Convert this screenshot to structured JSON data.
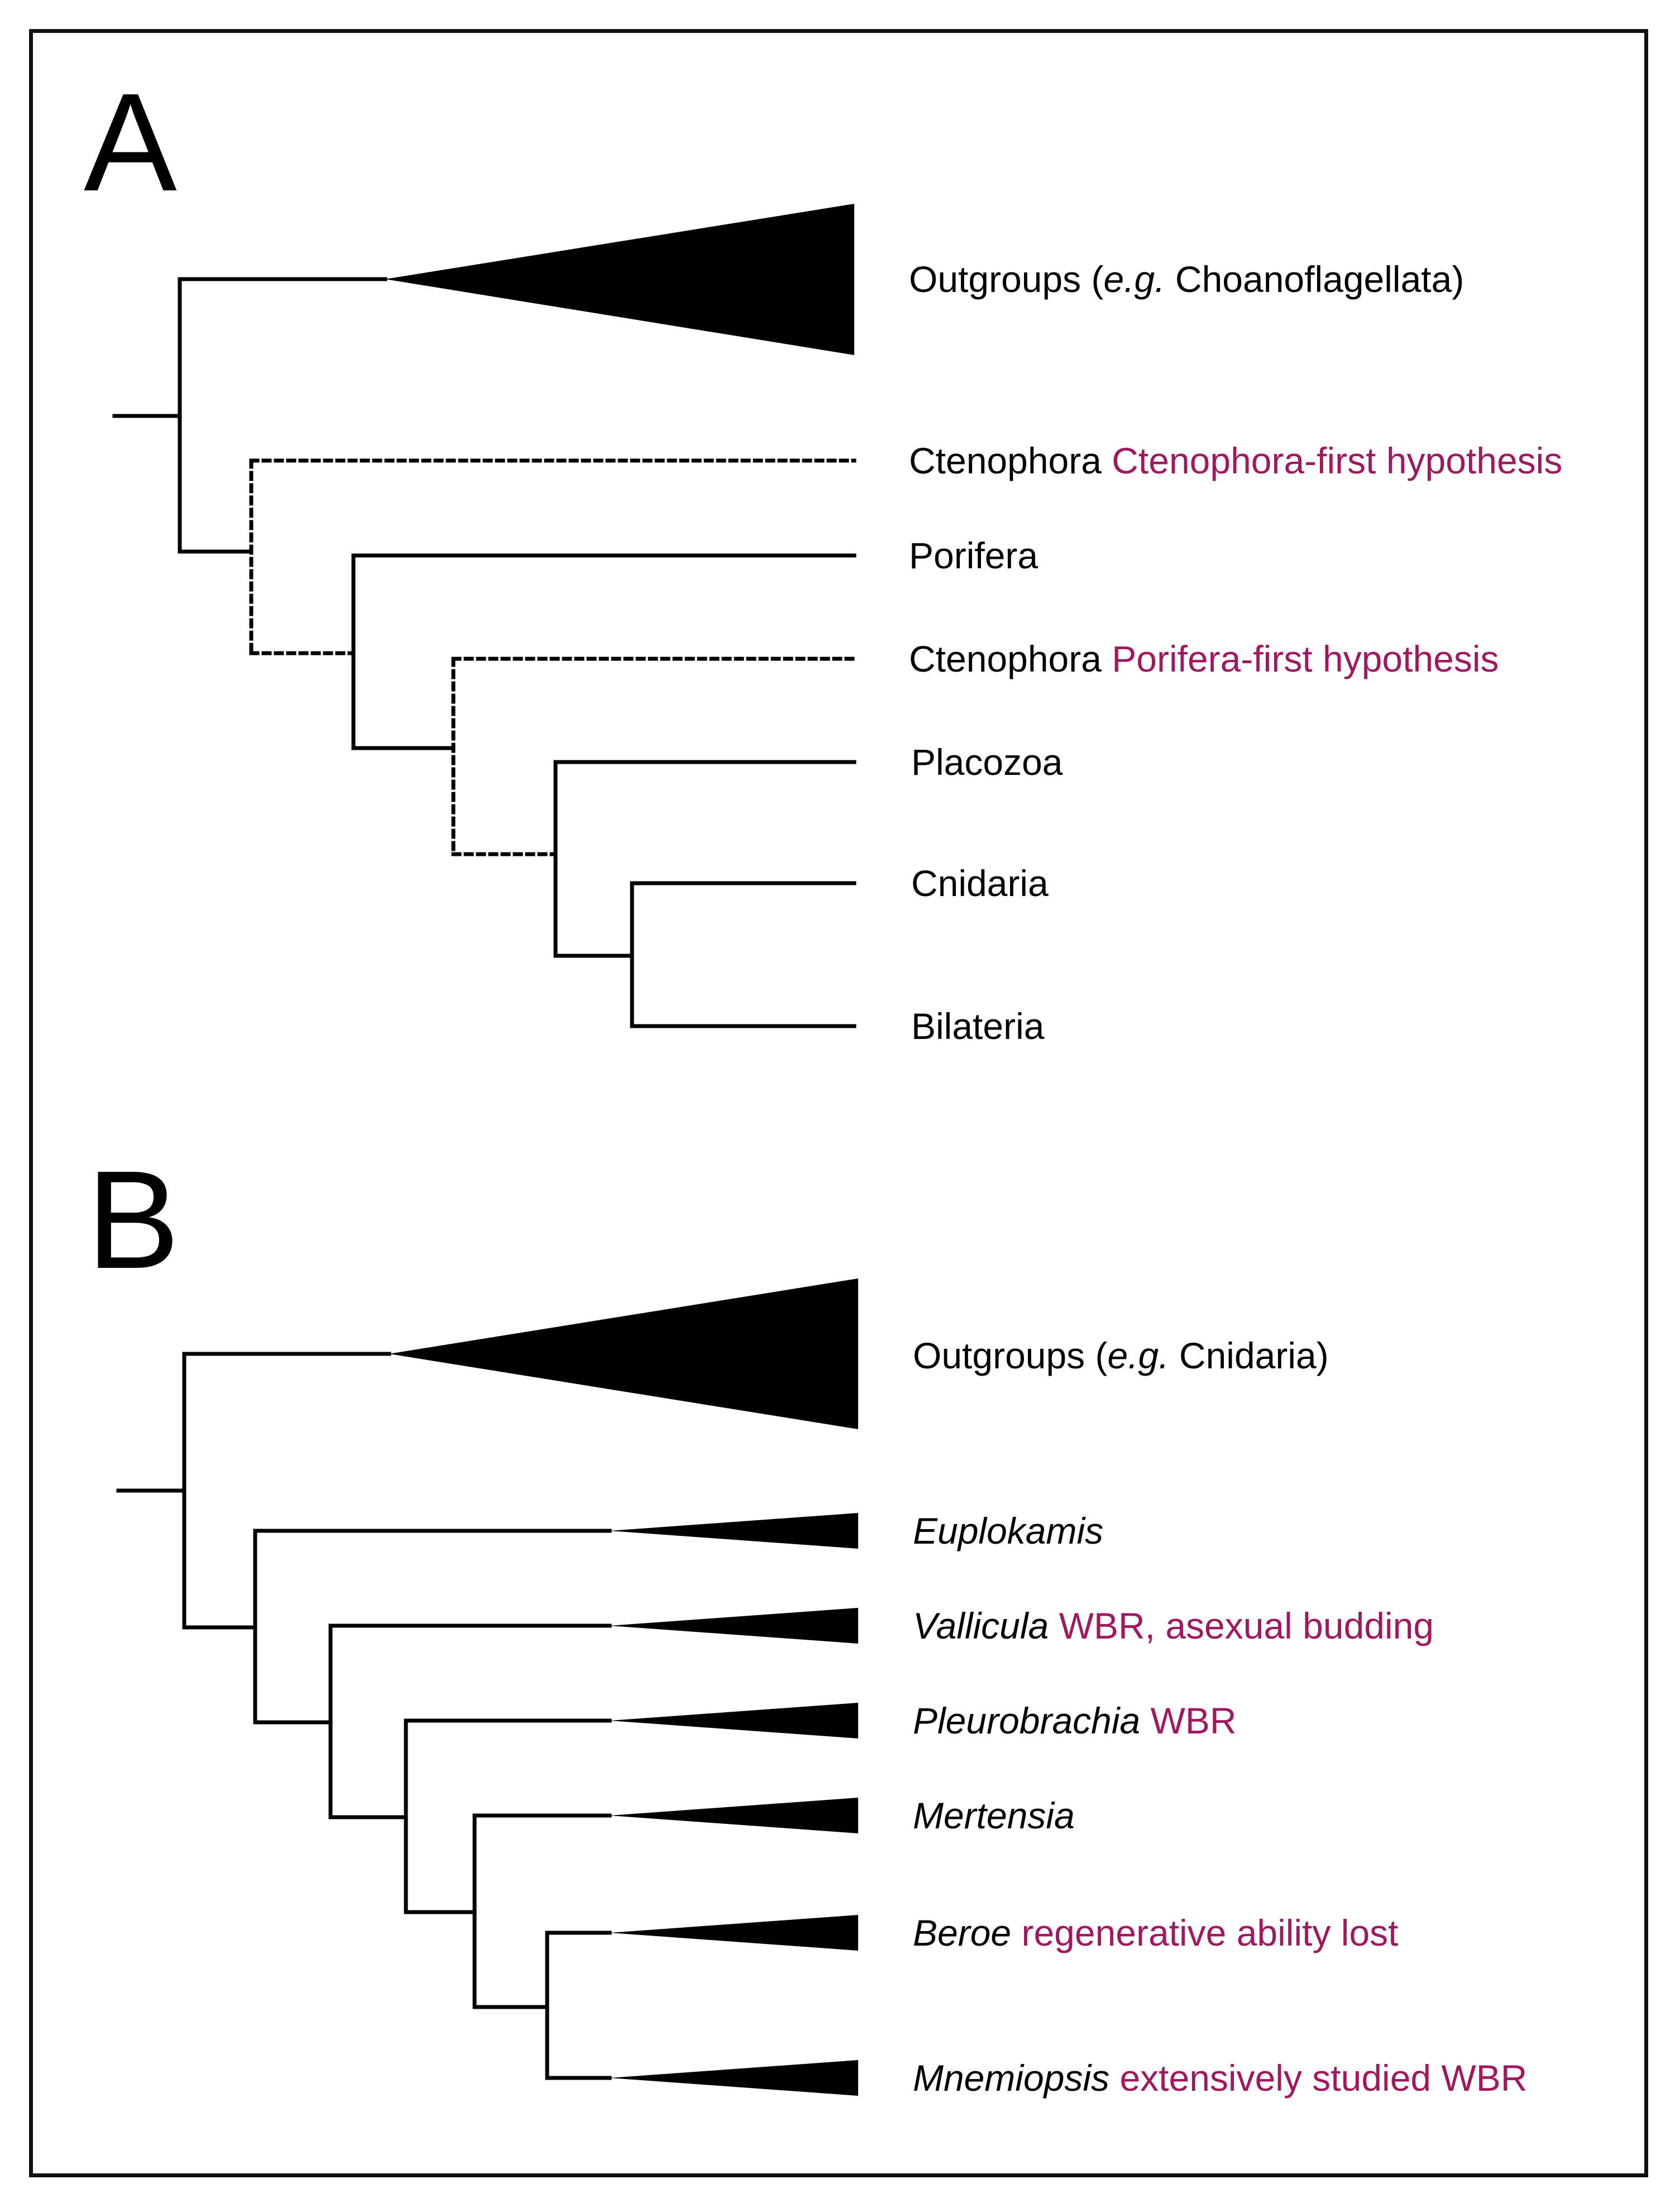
{
  "colors": {
    "line": "#000000",
    "annotation": "#a0185f"
  },
  "panel_a": {
    "letter": "A",
    "taxa": {
      "outgroups": {
        "prefix": "Outgroups (",
        "italic": "e.g.",
        "suffix": " Choanoflagellata)"
      },
      "ctenophora_first": {
        "name": "Ctenophora",
        "note": "Ctenophora-first hypothesis"
      },
      "porifera": {
        "name": "Porifera"
      },
      "ctenophora_porifera_first": {
        "name": "Ctenophora",
        "note": "Porifera-first hypothesis"
      },
      "placozoa": {
        "name": "Placozoa"
      },
      "cnidaria": {
        "name": "Cnidaria"
      },
      "bilateria": {
        "name": "Bilateria"
      }
    }
  },
  "panel_b": {
    "letter": "B",
    "taxa": {
      "outgroups": {
        "prefix": "Outgroups (",
        "italic": "e.g.",
        "suffix": " Cnidaria)"
      },
      "euplokamis": {
        "name": "Euplokamis"
      },
      "vallicula": {
        "name": "Vallicula",
        "note": "WBR, asexual budding"
      },
      "pleurobrachia": {
        "name": "Pleurobrachia",
        "note": "WBR"
      },
      "mertensia": {
        "name": "Mertensia"
      },
      "beroe": {
        "name": "Beroe",
        "note": "regenerative ability lost"
      },
      "mnemiopsis": {
        "name": "Mnemiopsis",
        "note": "extensively studied WBR"
      }
    }
  }
}
